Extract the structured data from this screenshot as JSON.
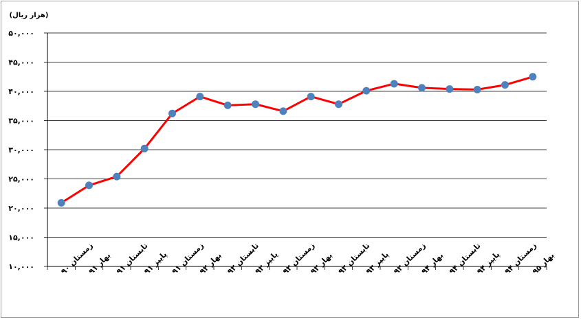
{
  "chart_data": {
    "type": "line",
    "title": "",
    "unit_label": "(هزار ریال)",
    "xlabel": "",
    "ylabel": "",
    "ylim": [
      10000,
      50000
    ],
    "y_ticks": [
      10000,
      15000,
      20000,
      25000,
      30000,
      35000,
      40000,
      45000,
      50000
    ],
    "y_tick_labels": [
      "۱۰,۰۰۰",
      "۱۵,۰۰۰",
      "۲۰,۰۰۰",
      "۲۵,۰۰۰",
      "۳۰,۰۰۰",
      "۳۵,۰۰۰",
      "۴۰,۰۰۰",
      "۴۵,۰۰۰",
      "۵۰,۰۰۰"
    ],
    "grid": true,
    "legend": "none",
    "categories": [
      "زمستان ۹۰",
      "بهار ۹۱",
      "تابستان ۹۱",
      "پاییز ۹۱",
      "زمستان ۹۱",
      "بهار ۹۲",
      "تابستان ۹۲",
      "پاییز ۹۲",
      "زمستان ۹۲",
      "بهار ۹۳",
      "تابستان ۹۳",
      "پاییز ۹۳",
      "زمستان ۹۳",
      "بهار ۹۴",
      "تابستان ۹۴",
      "پاییز ۹۴",
      "زمستان ۹۴",
      "بهار ۹۵"
    ],
    "series": [
      {
        "values": [
          20900,
          23900,
          25400,
          30200,
          36200,
          39100,
          37600,
          37800,
          36600,
          39100,
          37800,
          40100,
          41300,
          40600,
          40400,
          40300,
          41100,
          42500
        ]
      }
    ],
    "line_color": "#ff0000",
    "marker_color": "#4f81bd",
    "grid_color": "#000000"
  }
}
